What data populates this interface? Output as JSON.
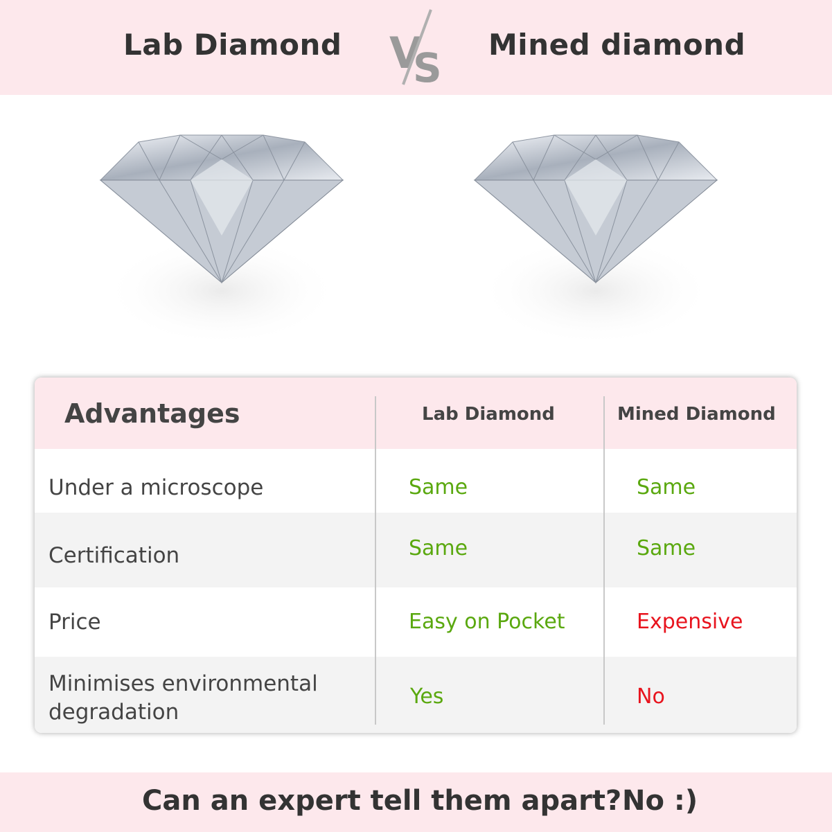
{
  "header": {
    "left_title": "Lab Diamond",
    "vs": "VS",
    "right_title": "Mined diamond"
  },
  "colors": {
    "band": "#fde8ec",
    "positive": "#5aa80f",
    "negative": "#e8141e",
    "text": "#444444"
  },
  "table": {
    "headers": [
      "Advantages",
      "Lab Diamond",
      "Mined Diamond"
    ],
    "rows": [
      {
        "label": "Under a microscope",
        "lab": "Same",
        "mined": "Same",
        "lab_status": "positive",
        "mined_status": "positive"
      },
      {
        "label": "Certification",
        "lab": "Same",
        "mined": "Same",
        "lab_status": "positive",
        "mined_status": "positive"
      },
      {
        "label": "Price",
        "lab": "Easy on Pocket",
        "mined": "Expensive",
        "lab_status": "positive",
        "mined_status": "negative"
      },
      {
        "label": "Minimises environmental degradation",
        "lab": "Yes",
        "mined": "No",
        "lab_status": "positive",
        "mined_status": "negative"
      }
    ]
  },
  "footer": {
    "question": "Can an expert tell them apart?",
    "answer": "No :)"
  }
}
